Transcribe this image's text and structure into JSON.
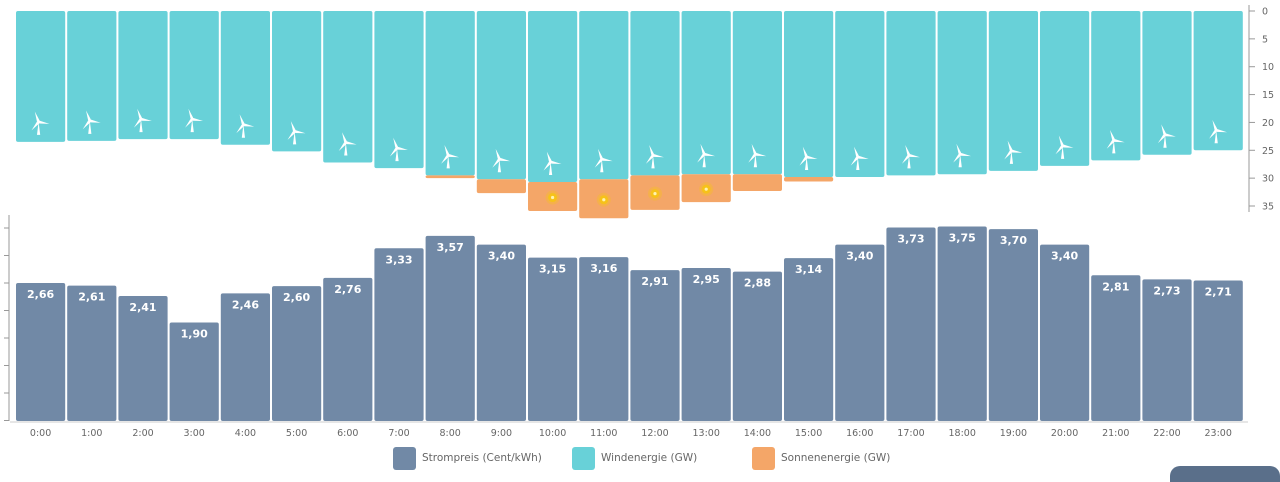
{
  "colors": {
    "price": "#7189a6",
    "wind": "#68d1d8",
    "solar": "#f4a668",
    "sun_core": "#f6c21a",
    "axis": "#999999",
    "tick_text": "#666666"
  },
  "legend": {
    "price_label": "Strompreis (Cent/kWh)",
    "wind_label": "Windenergie (GW)",
    "solar_label": "Sonnenenergie (GW)"
  },
  "chart_data": {
    "type": "bar",
    "categories": [
      "0:00",
      "1:00",
      "2:00",
      "3:00",
      "4:00",
      "5:00",
      "6:00",
      "7:00",
      "8:00",
      "9:00",
      "10:00",
      "11:00",
      "12:00",
      "13:00",
      "14:00",
      "15:00",
      "16:00",
      "17:00",
      "18:00",
      "19:00",
      "20:00",
      "21:00",
      "22:00",
      "23:00"
    ],
    "price": {
      "values": [
        2.66,
        2.61,
        2.41,
        1.9,
        2.46,
        2.6,
        2.76,
        3.33,
        3.57,
        3.4,
        3.15,
        3.16,
        2.91,
        2.95,
        2.88,
        3.14,
        3.4,
        3.73,
        3.75,
        3.7,
        3.4,
        2.81,
        2.73,
        2.71
      ],
      "labels": [
        "2,66",
        "2,61",
        "2,41",
        "1,90",
        "2,46",
        "2,60",
        "2,76",
        "3,33",
        "3,57",
        "3,40",
        "3,15",
        "3,16",
        "2,91",
        "2,95",
        "2,88",
        "3,14",
        "3,40",
        "3,73",
        "3,75",
        "3,70",
        "3,40",
        "2,81",
        "2,73",
        "2,71"
      ],
      "ylim": [
        0,
        4
      ]
    },
    "wind": {
      "values": [
        23.5,
        23.3,
        23.0,
        23.0,
        24.0,
        25.2,
        27.2,
        28.2,
        29.5,
        30.2,
        30.7,
        30.2,
        29.5,
        29.3,
        29.3,
        29.8,
        29.8,
        29.5,
        29.3,
        28.7,
        27.8,
        26.8,
        25.8,
        25.0
      ]
    },
    "solar": {
      "values": [
        0,
        0,
        0,
        0,
        0,
        0,
        0,
        0,
        0.5,
        2.5,
        5.2,
        7.0,
        6.2,
        5.0,
        3.0,
        0.8,
        0,
        0,
        0,
        0,
        0,
        0,
        0,
        0
      ],
      "sun_icon_hours": [
        10,
        11,
        12,
        13
      ]
    },
    "energy_axis": {
      "ylim": [
        0,
        36
      ],
      "ticks": [
        "0",
        "5",
        "10",
        "15",
        "20",
        "25",
        "30",
        "35"
      ],
      "inverted": true
    }
  }
}
